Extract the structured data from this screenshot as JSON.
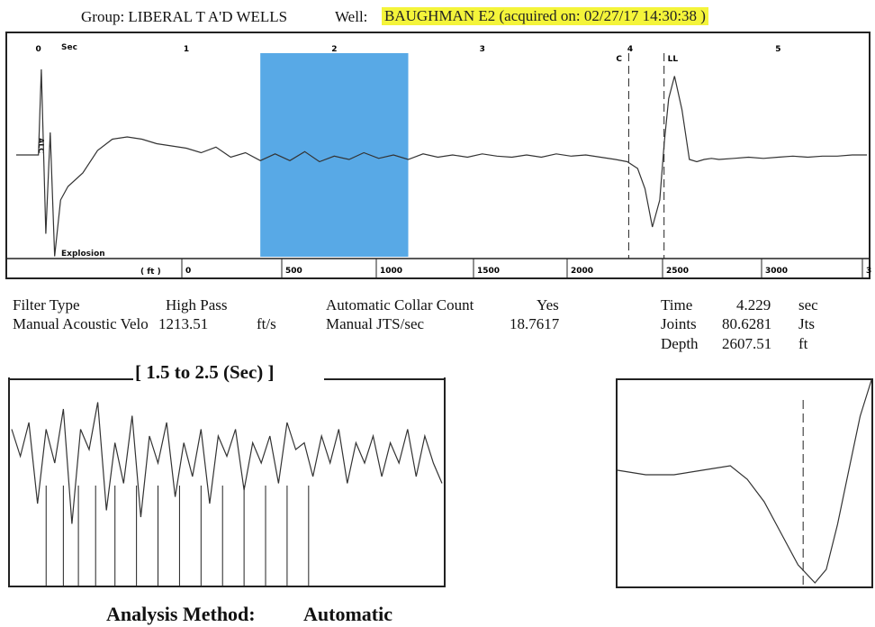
{
  "header": {
    "group_text": "Group: LIBERAL T A'D WELLS",
    "well_prefix": "Well:",
    "well_value": "BAUGHMAN E2 (acquired on: 02/27/17 14:30:38 )"
  },
  "main_chart": {
    "sec_label": "Sec",
    "ft_label": "( ft )",
    "ch_label": "ALC",
    "explosion_label": "Explosion",
    "c_marker": "C",
    "ll_marker": "LL",
    "highlight_color": "#58a9e6"
  },
  "info": {
    "filter_type_label": "Filter Type",
    "filter_type_value": "High Pass",
    "velocity_label": "Manual Acoustic Velo",
    "velocity_value": "1213.51",
    "velocity_unit": "ft/s",
    "collar_label": "Automatic Collar Count",
    "collar_value": "Yes",
    "jts_label": "Manual JTS/sec",
    "jts_value": "18.7617",
    "time_label": "Time",
    "time_value": "4.229",
    "time_unit": "sec",
    "joints_label": "Joints",
    "joints_value": "80.6281",
    "joints_unit": "Jts",
    "depth_label": "Depth",
    "depth_value": "2607.51",
    "depth_unit": "ft"
  },
  "zoom": {
    "title": "[ 1.5  to  2.5 (Sec) ]"
  },
  "footer": {
    "analysis_label": "Analysis Method:",
    "analysis_value": "Automatic"
  },
  "chart_data": [
    {
      "type": "line",
      "title": "",
      "x_axis_seconds": {
        "range": [
          -0.15,
          5.6
        ],
        "ticks": [
          "0",
          "1",
          "2",
          "3",
          "4",
          "5"
        ]
      },
      "x_axis_feet": {
        "ticks": [
          "0",
          "500",
          "1000",
          "1500",
          "2000",
          "2500",
          "3000",
          "3"
        ]
      },
      "highlight_range_sec": [
        1.5,
        2.5
      ],
      "markers_sec": {
        "C": 3.99,
        "LL": 4.229
      },
      "series": [
        {
          "x": [
            -0.15,
            0.0,
            0.02,
            0.05,
            0.08,
            0.11,
            0.15,
            0.2,
            0.3,
            0.4,
            0.5,
            0.6,
            0.7,
            0.8,
            0.9,
            1.0,
            1.1,
            1.2,
            1.3,
            1.4,
            1.5,
            1.6,
            1.7,
            1.8,
            1.9,
            2.0,
            2.1,
            2.2,
            2.3,
            2.4,
            2.5,
            2.6,
            2.7,
            2.8,
            2.9,
            3.0,
            3.1,
            3.2,
            3.3,
            3.4,
            3.5,
            3.6,
            3.7,
            3.8,
            3.9,
            3.98,
            4.05,
            4.1,
            4.15,
            4.2,
            4.23,
            4.26,
            4.3,
            4.35,
            4.4,
            4.45,
            4.5,
            4.55,
            4.6,
            4.7,
            4.8,
            4.9,
            5.0,
            5.1,
            5.2,
            5.3,
            5.4,
            5.5,
            5.6
          ],
          "values": [
            0.0,
            0.0,
            3.8,
            -3.5,
            1.0,
            -4.5,
            -2.0,
            -1.4,
            -0.8,
            0.2,
            0.7,
            0.8,
            0.7,
            0.5,
            0.4,
            0.3,
            0.1,
            0.35,
            -0.1,
            0.1,
            -0.25,
            0.05,
            -0.25,
            0.15,
            -0.3,
            -0.05,
            -0.2,
            0.1,
            -0.15,
            0.0,
            -0.2,
            0.05,
            -0.1,
            0.0,
            -0.1,
            0.05,
            -0.05,
            -0.1,
            0.0,
            -0.1,
            0.05,
            -0.05,
            0.0,
            -0.1,
            -0.2,
            -0.3,
            -0.6,
            -1.5,
            -3.2,
            -2.0,
            0.5,
            2.5,
            3.5,
            2.0,
            -0.2,
            -0.3,
            -0.2,
            -0.15,
            -0.2,
            -0.15,
            -0.1,
            -0.15,
            -0.1,
            -0.05,
            -0.1,
            -0.05,
            -0.05,
            0.0,
            0.0
          ]
        }
      ]
    },
    {
      "type": "line",
      "title": "[ 1.5  to  2.5 (Sec) ]",
      "x_range_sec": [
        1.5,
        2.5
      ],
      "series": [
        {
          "x": [
            1.5,
            1.52,
            1.54,
            1.56,
            1.58,
            1.6,
            1.62,
            1.64,
            1.66,
            1.68,
            1.7,
            1.72,
            1.74,
            1.76,
            1.78,
            1.8,
            1.82,
            1.84,
            1.86,
            1.88,
            1.9,
            1.92,
            1.94,
            1.96,
            1.98,
            2.0,
            2.02,
            2.04,
            2.06,
            2.08,
            2.1,
            2.12,
            2.14,
            2.16,
            2.18,
            2.2,
            2.22,
            2.24,
            2.26,
            2.28,
            2.3,
            2.32,
            2.34,
            2.36,
            2.38,
            2.4,
            2.42,
            2.44,
            2.46,
            2.48,
            2.5
          ],
          "values": [
            0.5,
            0.1,
            0.6,
            -0.6,
            0.5,
            0.0,
            0.8,
            -0.9,
            0.5,
            0.2,
            0.9,
            -0.7,
            0.3,
            -0.3,
            0.7,
            -0.8,
            0.4,
            0.0,
            0.6,
            -0.5,
            0.3,
            -0.2,
            0.5,
            -0.6,
            0.4,
            0.1,
            0.5,
            -0.4,
            0.3,
            0.0,
            0.4,
            -0.3,
            0.6,
            0.2,
            0.3,
            -0.2,
            0.4,
            0.0,
            0.5,
            -0.3,
            0.3,
            0.0,
            0.4,
            -0.2,
            0.3,
            0.0,
            0.5,
            -0.2,
            0.4,
            0.0,
            -0.3
          ]
        }
      ],
      "collar_markers_sec": [
        1.58,
        1.62,
        1.655,
        1.695,
        1.74,
        1.79,
        1.84,
        1.89,
        1.94,
        1.99,
        2.04,
        2.09,
        2.14,
        2.19
      ]
    },
    {
      "type": "line",
      "title": "",
      "x_range_sec": [
        3.9,
        4.35
      ],
      "marker_sec": 4.229,
      "series": [
        {
          "x": [
            3.9,
            3.95,
            4.0,
            4.05,
            4.1,
            4.13,
            4.16,
            4.19,
            4.22,
            4.25,
            4.27,
            4.29,
            4.31,
            4.33,
            4.35
          ],
          "values": [
            0.0,
            -0.05,
            -0.05,
            0.0,
            0.05,
            -0.1,
            -0.35,
            -0.7,
            -1.05,
            -1.25,
            -1.1,
            -0.6,
            0.0,
            0.6,
            1.0
          ]
        }
      ]
    }
  ]
}
